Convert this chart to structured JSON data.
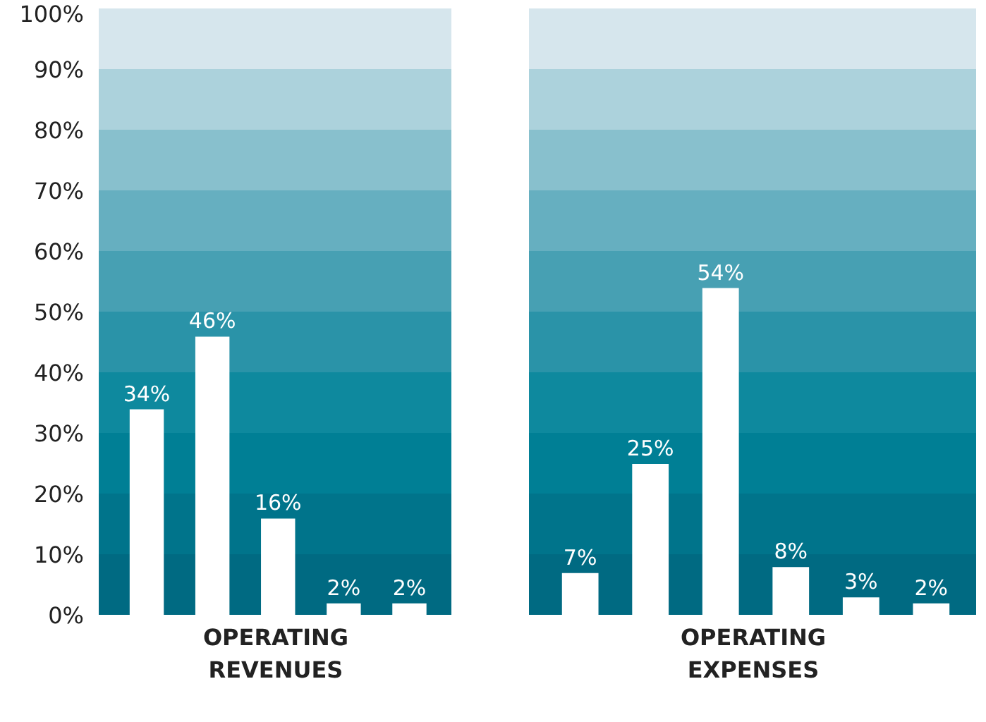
{
  "chart_data": [
    {
      "type": "bar",
      "xlabel": "OPERATING REVENUES",
      "categories": [
        null,
        null,
        null,
        null,
        null
      ],
      "values": [
        34,
        46,
        16,
        2,
        2
      ],
      "color": "#ffffff",
      "value_labels": [
        "34%",
        "46%",
        "16%",
        "2%",
        "2%"
      ],
      "ylim": [
        0,
        100
      ],
      "yticks": [
        {
          "value": 0,
          "label": "0%"
        },
        {
          "value": 10,
          "label": "10%"
        },
        {
          "value": 20,
          "label": "20%"
        },
        {
          "value": 30,
          "label": "30%"
        },
        {
          "value": 40,
          "label": "40%"
        },
        {
          "value": 50,
          "label": "50%"
        },
        {
          "value": 60,
          "label": "60%"
        },
        {
          "value": 70,
          "label": "70%"
        },
        {
          "value": 80,
          "label": "80%"
        },
        {
          "value": 90,
          "label": "90%"
        },
        {
          "value": 100,
          "label": "100%"
        }
      ],
      "tick_labels": "y"
    },
    {
      "type": "bar",
      "xlabel": "OPERATING EXPENSES",
      "categories": [
        null,
        null,
        null,
        null,
        null,
        null
      ],
      "values": [
        7,
        25,
        54,
        8,
        3,
        2
      ],
      "color": "#ffffff",
      "value_labels": [
        "7%",
        "25%",
        "54%",
        "8%",
        "3%",
        "2%"
      ],
      "ylim": [
        0,
        100
      ],
      "tick_labels": false
    }
  ]
}
